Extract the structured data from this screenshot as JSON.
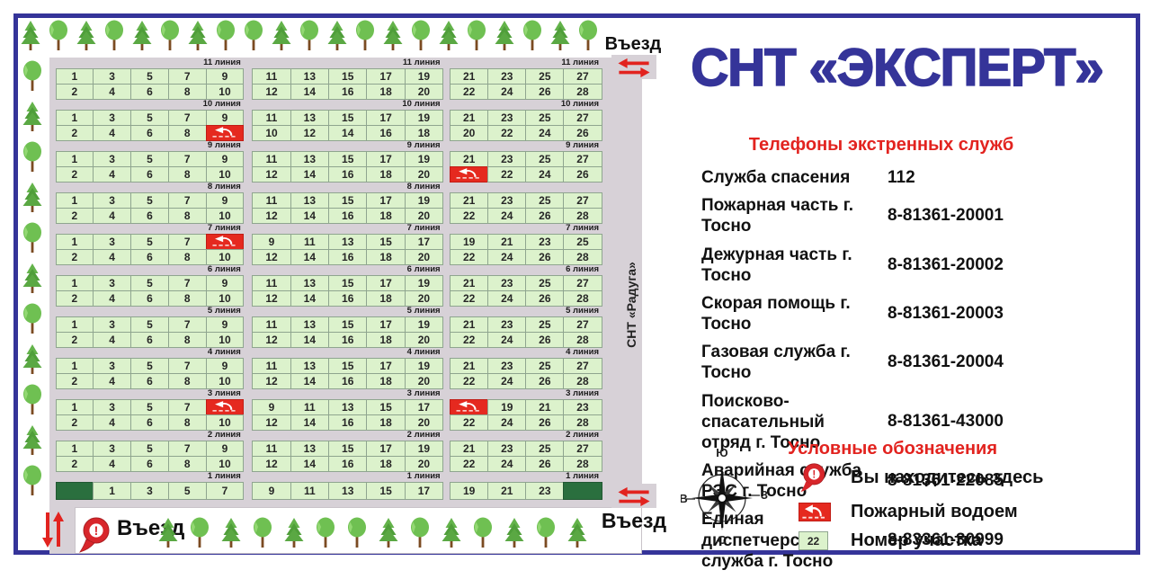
{
  "poster": {
    "title": "СНТ «ЭКСПЕРТ»"
  },
  "entrances": {
    "top_right": "Въезд",
    "bottom_right": "Въезд",
    "bottom_left": "Въезд"
  },
  "neighbor_label": "СНТ «Радуга»",
  "phones": {
    "header": "Телефоны экстренных служб",
    "rows": [
      {
        "name": "Служба спасения",
        "number": "112"
      },
      {
        "name": "Пожарная часть г. Тосно",
        "number": "8-81361-20001"
      },
      {
        "name": "Дежурная часть г. Тосно",
        "number": "8-81361-20002"
      },
      {
        "name": "Скорая помощь г. Тосно",
        "number": "8-81361-20003"
      },
      {
        "name": "Газовая служба г. Тосно",
        "number": "8-81361-20004"
      },
      {
        "name": "Поисково-спасательный\nотряд г. Тосно",
        "number": "8-81361-43000"
      },
      {
        "name": "Аварийная служба\nРЭС г. Тосно",
        "number": "8-81361-22085"
      },
      {
        "name": "Единая диспетчерская\nслужба г. Тосно",
        "number": "8-83361-30999"
      }
    ]
  },
  "legend": {
    "header": "Условные обозначения",
    "items": [
      {
        "icon": "you-are-here-pin-icon",
        "label": "Вы находитесь здесь"
      },
      {
        "icon": "fire-pond-icon",
        "label": "Пожарный водоем"
      },
      {
        "icon": "plot-number-icon",
        "label": "Номер участка",
        "sample": "22"
      }
    ]
  },
  "compass": {
    "top": "Ю",
    "right": "З",
    "bottom": "С",
    "left": "В"
  },
  "map": {
    "lines": [
      {
        "label": "11 линия",
        "labels": [
          true,
          true,
          true
        ],
        "single": false,
        "blocks": [
          {
            "top": [
              "1",
              "3",
              "5",
              "7",
              "9"
            ],
            "bottom": [
              "2",
              "4",
              "6",
              "8",
              "10"
            ]
          },
          {
            "top": [
              "11",
              "13",
              "15",
              "17",
              "19"
            ],
            "bottom": [
              "12",
              "14",
              "16",
              "18",
              "20"
            ]
          },
          {
            "top": [
              "21",
              "23",
              "25",
              "27"
            ],
            "bottom": [
              "22",
              "24",
              "26",
              "28"
            ]
          }
        ]
      },
      {
        "label": "10 линия",
        "labels": [
          true,
          true,
          true
        ],
        "single": false,
        "blocks": [
          {
            "top": [
              "1",
              "3",
              "5",
              "7",
              "9"
            ],
            "bottom": [
              "2",
              "4",
              "6",
              "8",
              "RED"
            ]
          },
          {
            "top": [
              "11",
              "13",
              "15",
              "17",
              "19"
            ],
            "bottom": [
              "10",
              "12",
              "14",
              "16",
              "18"
            ]
          },
          {
            "top": [
              "21",
              "23",
              "25",
              "27"
            ],
            "bottom": [
              "20",
              "22",
              "24",
              "26"
            ]
          }
        ]
      },
      {
        "label": "9 линия",
        "labels": [
          true,
          true,
          true
        ],
        "single": false,
        "blocks": [
          {
            "top": [
              "1",
              "3",
              "5",
              "7",
              "9"
            ],
            "bottom": [
              "2",
              "4",
              "6",
              "8",
              "10"
            ]
          },
          {
            "top": [
              "11",
              "13",
              "15",
              "17",
              "19"
            ],
            "bottom": [
              "12",
              "14",
              "16",
              "18",
              "20"
            ]
          },
          {
            "top": [
              "21",
              "23",
              "25",
              "27"
            ],
            "bottom": [
              "RED",
              "22",
              "24",
              "26"
            ]
          }
        ]
      },
      {
        "label": "8 линия",
        "labels": [
          true,
          true,
          false
        ],
        "single": false,
        "blocks": [
          {
            "top": [
              "1",
              "3",
              "5",
              "7",
              "9"
            ],
            "bottom": [
              "2",
              "4",
              "6",
              "8",
              "10"
            ]
          },
          {
            "top": [
              "11",
              "13",
              "15",
              "17",
              "19"
            ],
            "bottom": [
              "12",
              "14",
              "16",
              "18",
              "20"
            ]
          },
          {
            "top": [
              "21",
              "23",
              "25",
              "27"
            ],
            "bottom": [
              "22",
              "24",
              "26",
              "28"
            ]
          }
        ]
      },
      {
        "label": "7 линия",
        "labels": [
          true,
          true,
          true
        ],
        "single": false,
        "blocks": [
          {
            "top": [
              "1",
              "3",
              "5",
              "7",
              "RED"
            ],
            "bottom": [
              "2",
              "4",
              "6",
              "8",
              "10"
            ]
          },
          {
            "top": [
              "9",
              "11",
              "13",
              "15",
              "17"
            ],
            "bottom": [
              "12",
              "14",
              "16",
              "18",
              "20"
            ]
          },
          {
            "top": [
              "19",
              "21",
              "23",
              "25"
            ],
            "bottom": [
              "22",
              "24",
              "26",
              "28"
            ]
          }
        ]
      },
      {
        "label": "6 линия",
        "labels": [
          true,
          true,
          true
        ],
        "single": false,
        "blocks": [
          {
            "top": [
              "1",
              "3",
              "5",
              "7",
              "9"
            ],
            "bottom": [
              "2",
              "4",
              "6",
              "8",
              "10"
            ]
          },
          {
            "top": [
              "11",
              "13",
              "15",
              "17",
              "19"
            ],
            "bottom": [
              "12",
              "14",
              "16",
              "18",
              "20"
            ]
          },
          {
            "top": [
              "21",
              "23",
              "25",
              "27"
            ],
            "bottom": [
              "22",
              "24",
              "26",
              "28"
            ]
          }
        ]
      },
      {
        "label": "5 линия",
        "labels": [
          true,
          true,
          true
        ],
        "single": false,
        "blocks": [
          {
            "top": [
              "1",
              "3",
              "5",
              "7",
              "9"
            ],
            "bottom": [
              "2",
              "4",
              "6",
              "8",
              "10"
            ]
          },
          {
            "top": [
              "11",
              "13",
              "15",
              "17",
              "19"
            ],
            "bottom": [
              "12",
              "14",
              "16",
              "18",
              "20"
            ]
          },
          {
            "top": [
              "21",
              "23",
              "25",
              "27"
            ],
            "bottom": [
              "22",
              "24",
              "26",
              "28"
            ]
          }
        ]
      },
      {
        "label": "4 линия",
        "labels": [
          true,
          true,
          true
        ],
        "single": false,
        "blocks": [
          {
            "top": [
              "1",
              "3",
              "5",
              "7",
              "9"
            ],
            "bottom": [
              "2",
              "4",
              "6",
              "8",
              "10"
            ]
          },
          {
            "top": [
              "11",
              "13",
              "15",
              "17",
              "19"
            ],
            "bottom": [
              "12",
              "14",
              "16",
              "18",
              "20"
            ]
          },
          {
            "top": [
              "21",
              "23",
              "25",
              "27"
            ],
            "bottom": [
              "22",
              "24",
              "26",
              "28"
            ]
          }
        ]
      },
      {
        "label": "3 линия",
        "labels": [
          true,
          true,
          true
        ],
        "single": false,
        "blocks": [
          {
            "top": [
              "1",
              "3",
              "5",
              "7",
              "RED"
            ],
            "bottom": [
              "2",
              "4",
              "6",
              "8",
              "10"
            ]
          },
          {
            "top": [
              "9",
              "11",
              "13",
              "15",
              "17"
            ],
            "bottom": [
              "12",
              "14",
              "16",
              "18",
              "20"
            ]
          },
          {
            "top": [
              "RED",
              "19",
              "21",
              "23"
            ],
            "bottom": [
              "22",
              "24",
              "26",
              "28"
            ]
          }
        ]
      },
      {
        "label": "2 линия",
        "labels": [
          true,
          true,
          true
        ],
        "single": false,
        "blocks": [
          {
            "top": [
              "1",
              "3",
              "5",
              "7",
              "9"
            ],
            "bottom": [
              "2",
              "4",
              "6",
              "8",
              "10"
            ]
          },
          {
            "top": [
              "11",
              "13",
              "15",
              "17",
              "19"
            ],
            "bottom": [
              "12",
              "14",
              "16",
              "18",
              "20"
            ]
          },
          {
            "top": [
              "21",
              "23",
              "25",
              "27"
            ],
            "bottom": [
              "22",
              "24",
              "26",
              "28"
            ]
          }
        ]
      },
      {
        "label": "1 линия",
        "labels": [
          true,
          true,
          true
        ],
        "single": true,
        "blocks": [
          {
            "top": [
              "DARK",
              "1",
              "3",
              "5",
              "7"
            ]
          },
          {
            "top": [
              "9",
              "11",
              "13",
              "15",
              "17"
            ]
          },
          {
            "top": [
              "19",
              "21",
              "23",
              "DARK"
            ]
          }
        ]
      }
    ]
  },
  "trees": {
    "top": [
      "conifer",
      "round",
      "conifer",
      "round",
      "conifer",
      "round",
      "conifer",
      "round",
      "round",
      "conifer",
      "round",
      "conifer",
      "round",
      "conifer",
      "round",
      "conifer",
      "round",
      "conifer",
      "round",
      "conifer",
      "round"
    ],
    "left": [
      "round",
      "conifer",
      "round",
      "conifer",
      "round",
      "conifer",
      "round",
      "conifer",
      "round",
      "conifer",
      "round"
    ],
    "bottom": [
      "conifer",
      "round",
      "conifer",
      "round",
      "conifer",
      "round",
      "round",
      "conifer",
      "round",
      "conifer",
      "round",
      "conifer",
      "round",
      "conifer"
    ]
  },
  "colors": {
    "accent_blue": "#353499",
    "accent_red": "#e2231f",
    "plot_green": "#dcf2cc",
    "service_green": "#2a6f3e",
    "road_gray": "#d7d1d7",
    "fire_red": "#e5291f"
  }
}
